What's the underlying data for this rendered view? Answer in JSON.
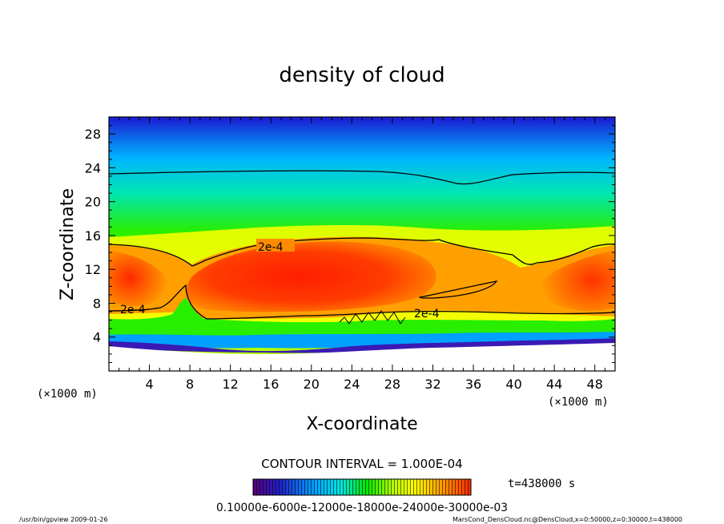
{
  "chart_data": {
    "type": "heatmap",
    "title": "density of cloud",
    "xlabel": "X-coordinate",
    "ylabel": "Z-coordinate",
    "x_unit": "(×1000 m)",
    "y_unit": "(×1000 m)",
    "xlim": [
      0,
      50
    ],
    "ylim": [
      0,
      30
    ],
    "x_ticks": [
      4,
      8,
      12,
      16,
      20,
      24,
      28,
      32,
      36,
      40,
      44,
      48
    ],
    "y_ticks": [
      4,
      8,
      12,
      16,
      20,
      24,
      28
    ],
    "contour_interval_text": "CONTOUR INTERVAL = 1.000E-04",
    "contour_labels": [
      "2e-4",
      "2e-4",
      "2e-4"
    ],
    "time_text": "t=438000 s",
    "colorbar_labels_text": "0.10000e-6000e-12000e-18000e-24000e-30000e-03",
    "colormap": [
      "#5a007a",
      "#1a1ad2",
      "#00a0ff",
      "#00e6e6",
      "#00e600",
      "#b4ff00",
      "#ffff00",
      "#ffa000",
      "#ff2800"
    ],
    "grid": false,
    "footer_left": "/usr/bin/gpview  2009-01-26",
    "footer_right": "MarsCond_DensCloud.nc@DensCloud,x=0:50000,z=0:30000,t=438000"
  }
}
